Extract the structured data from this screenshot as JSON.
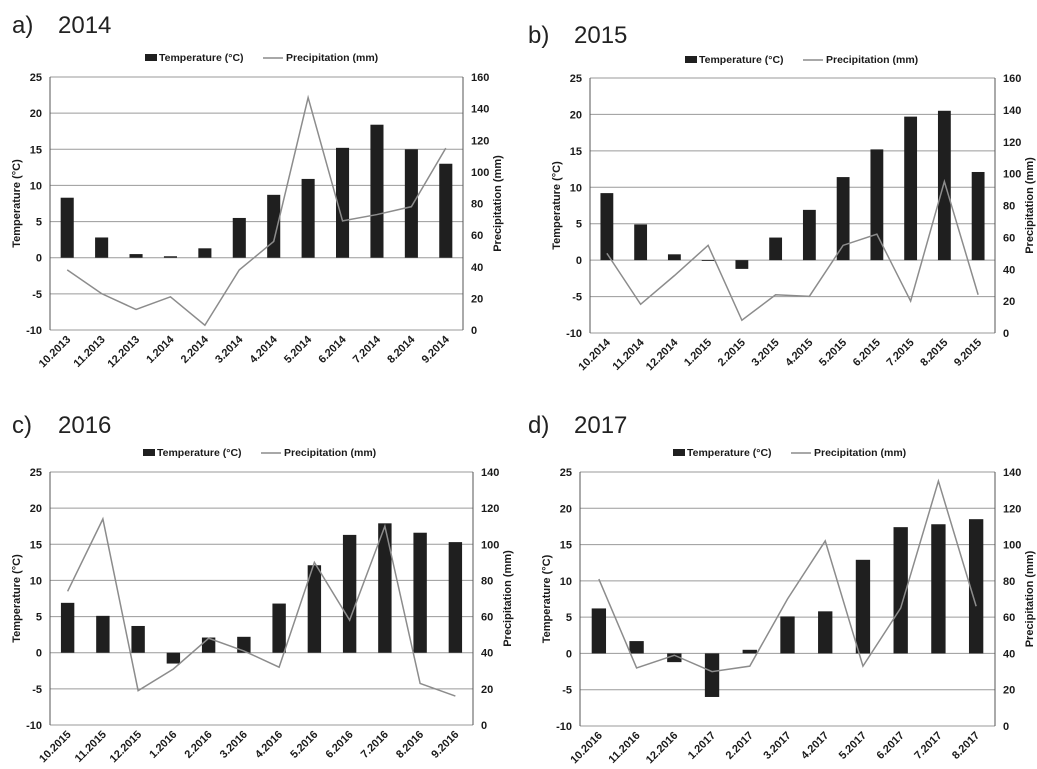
{
  "colors": {
    "bar": "#1f1f1f",
    "line": "#8c8c8c",
    "grid": "#9a9a9a",
    "axis": "#555555"
  },
  "chart_data": [
    {
      "panel": "a)",
      "year": "2014",
      "type": "bar",
      "legend": [
        "Temperature (°C)",
        "Precipitation (mm)"
      ],
      "ylabel": "Temperature (°C)",
      "y2label": "Precipitation (mm)",
      "ylim": [
        -10,
        25
      ],
      "yticks": [
        -10,
        -5,
        0,
        5,
        10,
        15,
        20,
        25
      ],
      "y2lim": [
        0,
        160
      ],
      "y2ticks": [
        0,
        20,
        40,
        60,
        80,
        100,
        120,
        140,
        160
      ],
      "categories": [
        "10.2013",
        "11.2013",
        "12.2013",
        "1.2014",
        "2.2014",
        "3.2014",
        "4.2014",
        "5.2014",
        "6.2014",
        "7.2014",
        "8.2014",
        "9.2014"
      ],
      "series": [
        {
          "name": "Temperature (°C)",
          "type": "bar",
          "axis": "left",
          "values": [
            8.3,
            2.8,
            0.5,
            0.2,
            1.3,
            5.5,
            8.7,
            10.9,
            15.2,
            18.4,
            15.0,
            13.0
          ]
        },
        {
          "name": "Precipitation (mm)",
          "type": "line",
          "axis": "right",
          "values": [
            38,
            23,
            13,
            21,
            3,
            38,
            56,
            147,
            69,
            73,
            78,
            115
          ]
        }
      ]
    },
    {
      "panel": "b)",
      "year": "2015",
      "type": "bar",
      "legend": [
        "Temperature (°C)",
        "Precipitation (mm)"
      ],
      "ylabel": "Temperature (°C)",
      "y2label": "Precipitation (mm)",
      "ylim": [
        -10,
        25
      ],
      "yticks": [
        -10,
        -5,
        0,
        5,
        10,
        15,
        20,
        25
      ],
      "y2lim": [
        0,
        160
      ],
      "y2ticks": [
        0,
        20,
        40,
        60,
        80,
        100,
        120,
        140,
        160
      ],
      "categories": [
        "10.2014",
        "11.2014",
        "12.2014",
        "1.2015",
        "2.2015",
        "3.2015",
        "4.2015",
        "5.2015",
        "6.2015",
        "7.2015",
        "8.2015",
        "9.2015"
      ],
      "series": [
        {
          "name": "Temperature (°C)",
          "type": "bar",
          "axis": "left",
          "values": [
            9.2,
            4.9,
            0.8,
            0,
            -1.2,
            3.1,
            6.9,
            11.4,
            15.2,
            19.7,
            20.5,
            12.1
          ]
        },
        {
          "name": "Precipitation (mm)",
          "type": "line",
          "axis": "right",
          "values": [
            50,
            18,
            36,
            55,
            8,
            24,
            23,
            55,
            62,
            20,
            95,
            24
          ]
        }
      ]
    },
    {
      "panel": "c)",
      "year": "2016",
      "type": "bar",
      "legend": [
        "Temperature (°C)",
        "Precipitation (mm)"
      ],
      "ylabel": "Temperature (°C)",
      "y2label": "Precipitation (mm)",
      "ylim": [
        -10,
        25
      ],
      "yticks": [
        -10,
        -5,
        0,
        5,
        10,
        15,
        20,
        25
      ],
      "y2lim": [
        0,
        140
      ],
      "y2ticks": [
        0,
        20,
        40,
        60,
        80,
        100,
        120,
        140
      ],
      "categories": [
        "10.2015",
        "11.2015",
        "12.2015",
        "1.2016",
        "2.2016",
        "3.2016",
        "4.2016",
        "5.2016",
        "6.2016",
        "7.2016",
        "8.2016",
        "9.2016"
      ],
      "series": [
        {
          "name": "Temperature (°C)",
          "type": "bar",
          "axis": "left",
          "values": [
            6.9,
            5.1,
            3.7,
            -1.5,
            2.1,
            2.2,
            6.8,
            12.1,
            16.3,
            17.9,
            16.6,
            15.3
          ]
        },
        {
          "name": "Precipitation (mm)",
          "type": "line",
          "axis": "right",
          "values": [
            74,
            114,
            19,
            31,
            48,
            41,
            32,
            90,
            58,
            110,
            23,
            16
          ]
        }
      ]
    },
    {
      "panel": "d)",
      "year": "2017",
      "type": "bar",
      "legend": [
        "Temperature (°C)",
        "Precipitation (mm)"
      ],
      "ylabel": "Temperature (°C)",
      "y2label": "Precipitation (mm)",
      "ylim": [
        -10,
        25
      ],
      "yticks": [
        -10,
        -5,
        0,
        5,
        10,
        15,
        20,
        25
      ],
      "y2lim": [
        0,
        140
      ],
      "y2ticks": [
        0,
        20,
        40,
        60,
        80,
        100,
        120,
        140
      ],
      "categories": [
        "10.2016",
        "11.2016",
        "12.2016",
        "1.2017",
        "2.2017",
        "3.2017",
        "4.2017",
        "5.2017",
        "6.2017",
        "7.2017",
        "8.2017"
      ],
      "series": [
        {
          "name": "Temperature (°C)",
          "type": "bar",
          "axis": "left",
          "values": [
            6.2,
            1.7,
            -1.2,
            -6.0,
            0.5,
            5.1,
            5.8,
            12.9,
            17.4,
            17.8,
            18.5
          ]
        },
        {
          "name": "Precipitation (mm)",
          "type": "line",
          "axis": "right",
          "values": [
            81,
            32,
            39,
            30,
            33,
            70,
            102,
            33,
            65,
            135,
            66
          ]
        }
      ]
    }
  ]
}
